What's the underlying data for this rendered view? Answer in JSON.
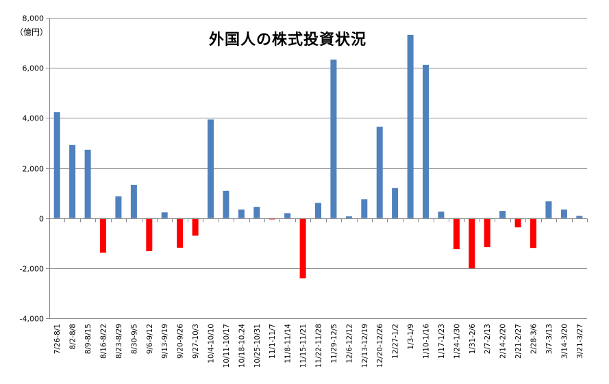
{
  "chart_data": {
    "type": "bar",
    "title": "外国人の株式投資状況",
    "unit_label": "（億円）",
    "xlabel": "",
    "ylabel": "",
    "ylim": [
      -4000,
      8000
    ],
    "y_ticks": [
      -4000,
      -2000,
      0,
      2000,
      4000,
      6000,
      8000
    ],
    "y_tick_labels": [
      "-4,000",
      "-2,000",
      "0",
      "2,000",
      "4,000",
      "6,000",
      "8,000"
    ],
    "grid": true,
    "legend": "none",
    "colors": {
      "positive": "#4f81bd",
      "negative": "#ff0000",
      "grid": "#868686",
      "axis": "#868686"
    },
    "categories": [
      "7/26-8/1",
      "8/2-8/8",
      "8/9-8/15",
      "8/16-8/22",
      "8/23-8/29",
      "8/30-9/5",
      "9/6-9/12",
      "9/13-9/19",
      "9/20-9/26",
      "9/27-10/3",
      "10/4-10/10",
      "10/11-10/17",
      "10/18-10.24",
      "10/25-10/31",
      "11/1-11/7",
      "11/8-11/14",
      "11/15-11/21",
      "11/22-11/28",
      "11/29-12/5",
      "12/6-12/12",
      "12/13-12/19",
      "12/20-12/26",
      "12/27-1/2",
      "1/3-1/9",
      "1/10-1/16",
      "1/17-1/23",
      "1/24-1/30",
      "1/31-2/6",
      "2/7-2/13",
      "2/14-2/20",
      "2/21-2/27",
      "2/28-3/6",
      "3/7-3/13",
      "3/14-3/20",
      "3/21-3/27"
    ],
    "values": [
      4230,
      2920,
      2730,
      -1380,
      870,
      1330,
      -1320,
      230,
      -1180,
      -700,
      3940,
      1090,
      340,
      450,
      -50,
      200,
      -2400,
      610,
      6330,
      70,
      750,
      3650,
      1200,
      7320,
      6120,
      260,
      -1240,
      -2000,
      -1160,
      290,
      -370,
      -1190,
      670,
      340,
      90
    ]
  }
}
